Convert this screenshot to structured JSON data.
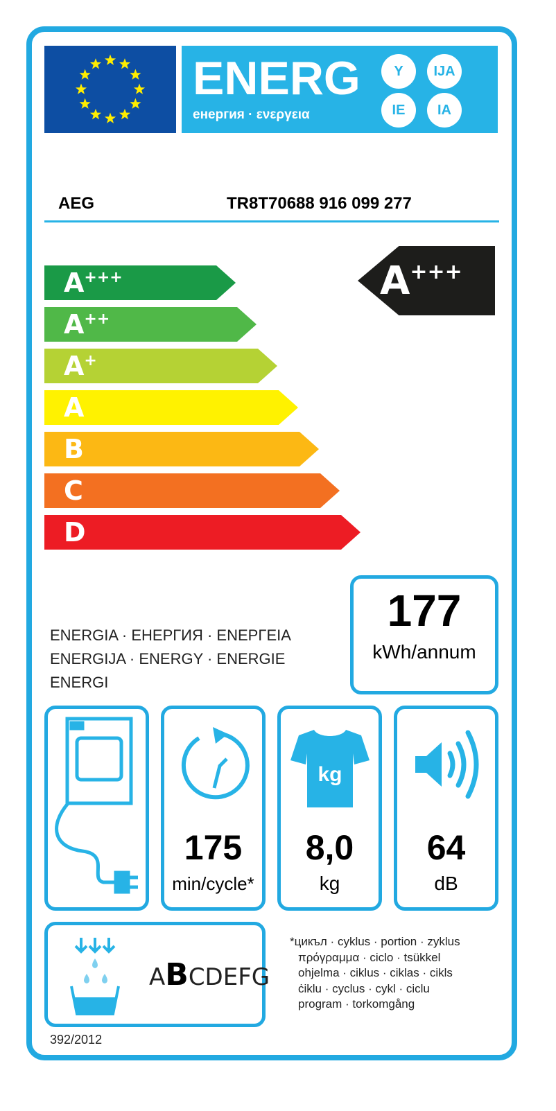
{
  "header": {
    "energ": "ENERG",
    "subtitle": "енергия · ενεργεια",
    "suffixes": [
      "Y",
      "IJA",
      "IE",
      "IA"
    ]
  },
  "supplier": "AEG",
  "model": "TR8T70688  916 099 277",
  "scale": [
    {
      "label": "A",
      "sup": "+++",
      "color": "#1a9a47"
    },
    {
      "label": "A",
      "sup": "++",
      "color": "#50b848"
    },
    {
      "label": "A",
      "sup": "+",
      "color": "#b5d234"
    },
    {
      "label": "A",
      "sup": "",
      "color": "#fff200"
    },
    {
      "label": "B",
      "sup": "",
      "color": "#fcb814"
    },
    {
      "label": "C",
      "sup": "",
      "color": "#f37021"
    },
    {
      "label": "D",
      "sup": "",
      "color": "#ed1c24"
    }
  ],
  "rating": {
    "label": "A",
    "sup": "+++"
  },
  "consumption": {
    "value": "177",
    "unit": "kWh/annum"
  },
  "energia_lines": [
    "ENERGIA · ЕНЕРГИЯ · ΕΝΕΡΓΕΙΑ",
    "ENERGIJA · ENERGY · ENERGIE",
    "ENERGI"
  ],
  "specs": [
    {
      "icon": "dryer-plug-icon"
    },
    {
      "icon": "clock-icon",
      "value": "175",
      "unit": "min/cycle*"
    },
    {
      "icon": "tshirt-kg-icon",
      "value": "8,0",
      "unit": "kg",
      "icon_text": "kg"
    },
    {
      "icon": "speaker-icon",
      "value": "64",
      "unit": "dB"
    }
  ],
  "condensation": {
    "icon": "water-basin-icon",
    "class_first": "A",
    "class_active": "B",
    "class_rest": "CDEFG"
  },
  "footnote": [
    "*цикъл · cyklus · portion · zyklus",
    "πρόγραμμα · ciclo · tsükkel",
    "ohjelma · ciklus · ciklas · cikls",
    "ċiklu · cyclus · cykl · ciclu",
    "program · torkomgång"
  ],
  "regulation": "392/2012",
  "colors": {
    "frame": "#22a9e1",
    "eu_blue": "#0d4ea3",
    "banner": "#27b3e6"
  }
}
